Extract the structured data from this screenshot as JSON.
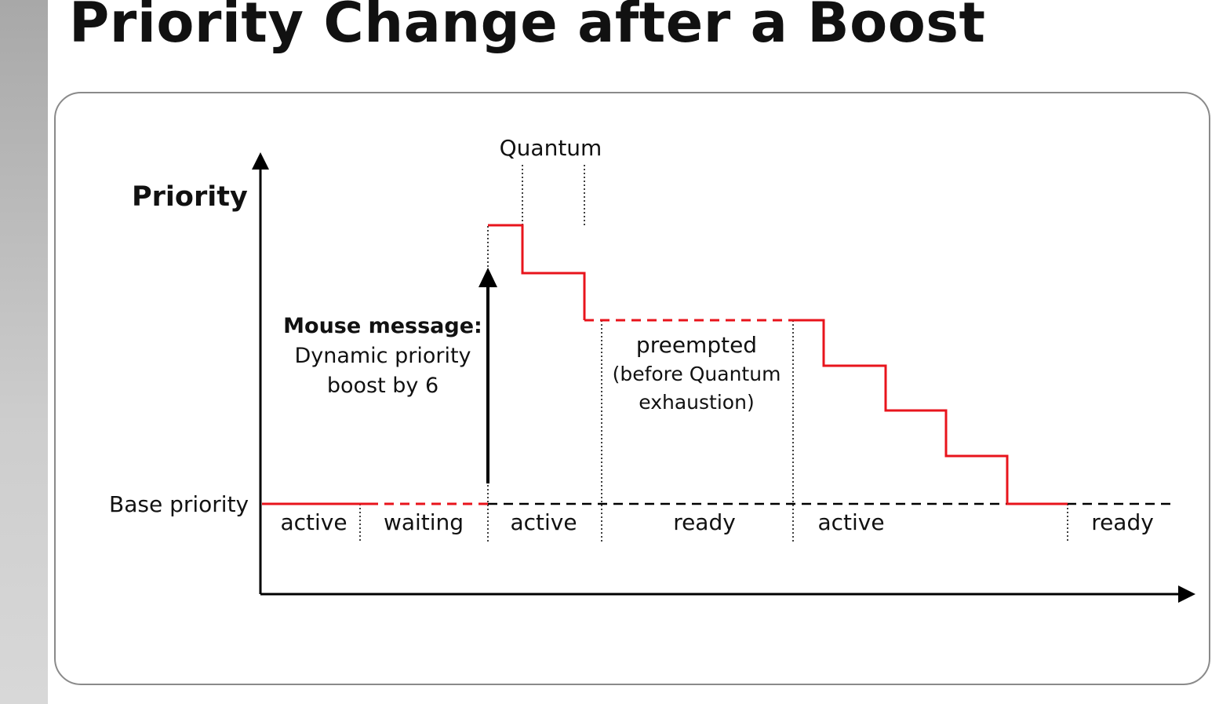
{
  "slide": {
    "title": "Priority Change after a Boost"
  },
  "diagram": {
    "y_axis_label": "Priority",
    "base_priority_label": "Base priority",
    "quantum_label": "Quantum",
    "boost_note": {
      "heading": "Mouse message:",
      "line1": "Dynamic priority",
      "line2": "boost by 6"
    },
    "preempted_note": {
      "line1": "preempted",
      "line2": "(before Quantum",
      "line3": "exhaustion)"
    },
    "states": [
      "active",
      "waiting",
      "active",
      "ready",
      "active",
      "ready"
    ]
  },
  "colors": {
    "priority_line": "#e8141c",
    "axis": "#000000",
    "frame_border": "#8a8a8a"
  }
}
